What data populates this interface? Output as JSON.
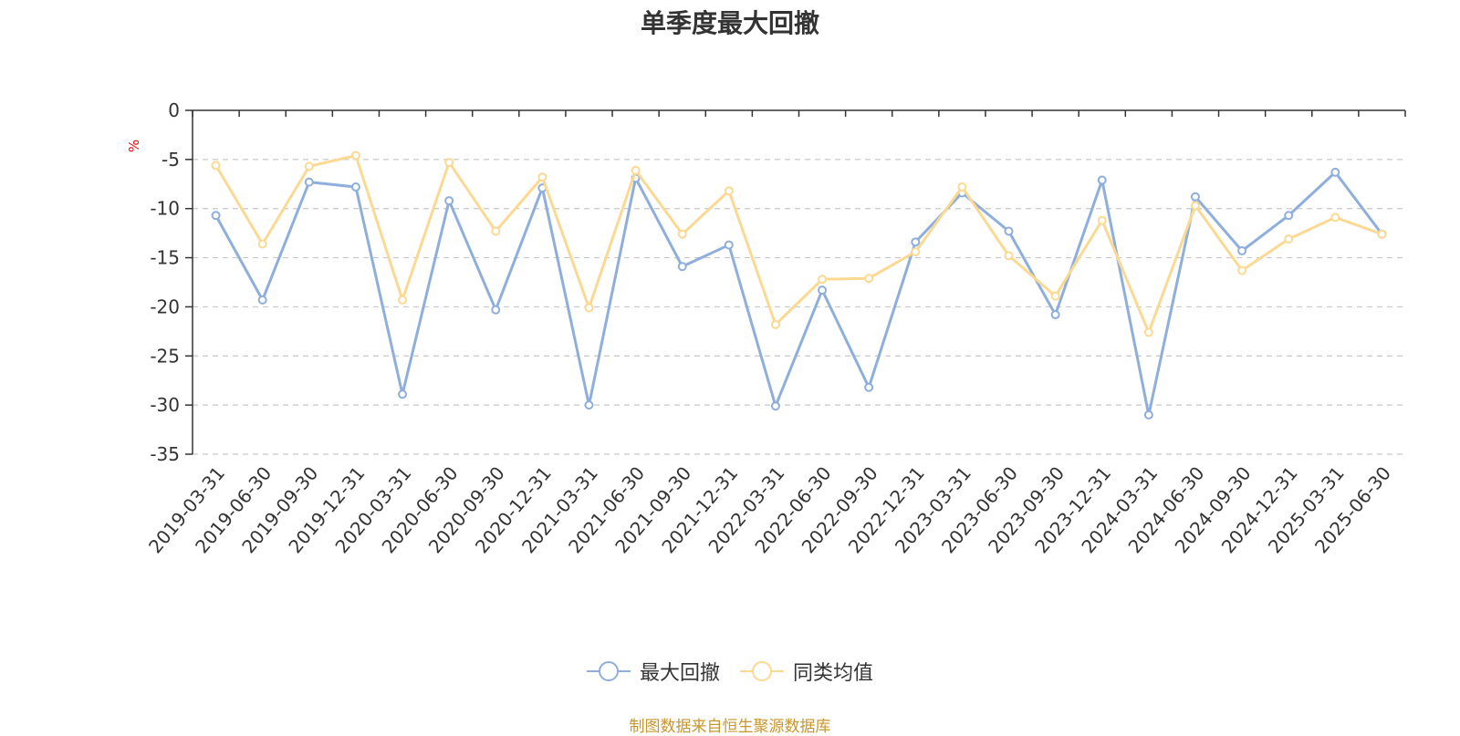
{
  "chart_data": {
    "type": "line",
    "title": "单季度最大回撤",
    "ylabel": "%",
    "ylim": [
      -35,
      0
    ],
    "yticks": [
      0,
      -5,
      -10,
      -15,
      -20,
      -25,
      -30,
      -35
    ],
    "grid": true,
    "legend_position": "bottom",
    "categories": [
      "2019-03-31",
      "2019-06-30",
      "2019-09-30",
      "2019-12-31",
      "2020-03-31",
      "2020-06-30",
      "2020-09-30",
      "2020-12-31",
      "2021-03-31",
      "2021-06-30",
      "2021-09-30",
      "2021-12-31",
      "2022-03-31",
      "2022-06-30",
      "2022-09-30",
      "2022-12-31",
      "2023-03-31",
      "2023-06-30",
      "2023-09-30",
      "2023-12-31",
      "2024-03-31",
      "2024-06-30",
      "2024-09-30",
      "2024-12-31",
      "2025-03-31",
      "2025-06-30"
    ],
    "series": [
      {
        "name": "最大回撤",
        "color": "#8eaedc",
        "values": [
          -10.7,
          -19.3,
          -7.3,
          -7.8,
          -28.9,
          -9.2,
          -20.3,
          -7.9,
          -30.0,
          -6.9,
          -15.9,
          -13.7,
          -30.1,
          -18.3,
          -28.2,
          -13.4,
          -8.4,
          -12.3,
          -20.8,
          -7.1,
          -31.0,
          -8.8,
          -14.3,
          -10.7,
          -6.3,
          -12.6
        ]
      },
      {
        "name": "同类均值",
        "color": "#fcd992",
        "values": [
          -5.6,
          -13.6,
          -5.7,
          -4.6,
          -19.3,
          -5.3,
          -12.3,
          -6.8,
          -20.1,
          -6.1,
          -12.6,
          -8.2,
          -21.8,
          -17.2,
          -17.1,
          -14.4,
          -7.8,
          -14.8,
          -18.9,
          -11.2,
          -22.6,
          -9.7,
          -16.3,
          -13.1,
          -10.9,
          -12.6
        ]
      }
    ]
  },
  "source": "制图数据来自恒生聚源数据库"
}
